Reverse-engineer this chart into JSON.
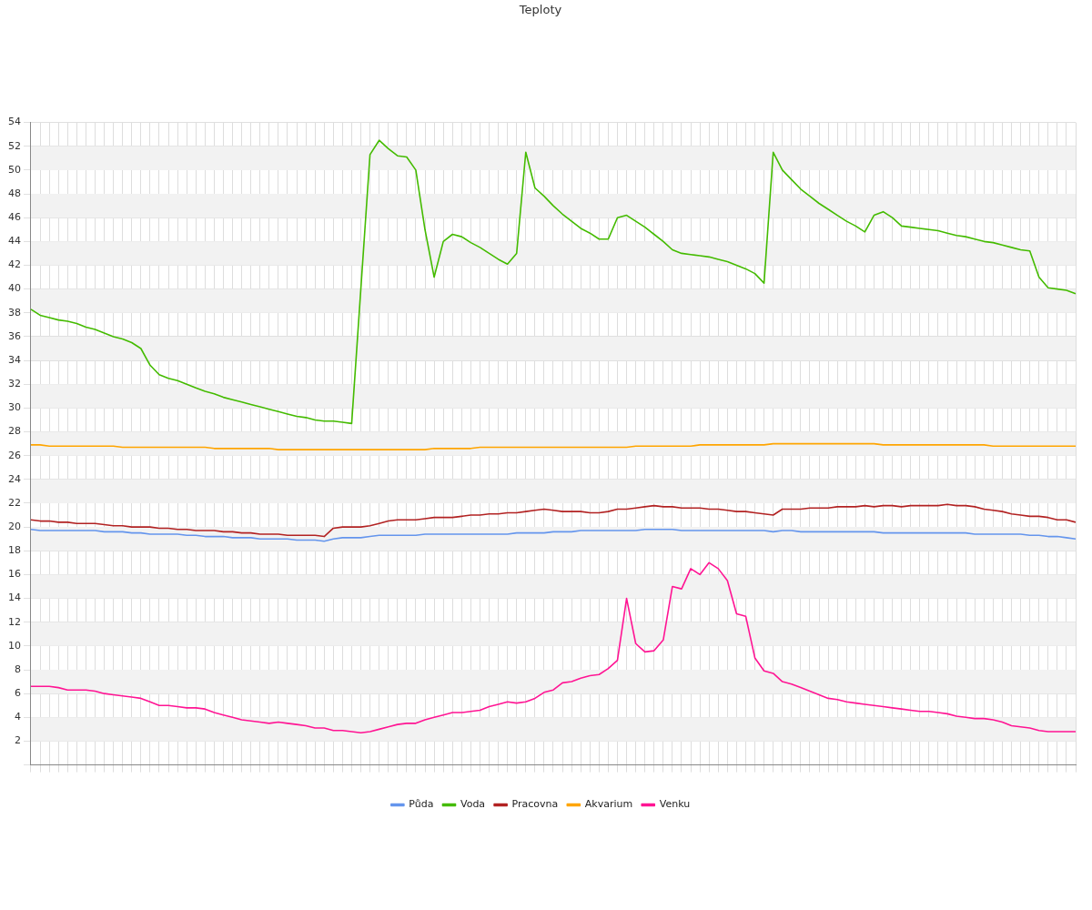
{
  "chart_data": {
    "type": "line",
    "title": "Teploty",
    "categories": [
      null,
      null,
      null,
      null,
      null,
      null,
      null,
      null,
      null,
      null,
      null,
      null,
      null,
      null,
      null,
      null,
      null,
      null,
      null,
      null,
      null,
      null,
      null,
      null,
      null,
      null,
      null,
      null,
      null,
      null,
      null,
      null,
      null,
      null,
      null,
      null,
      null,
      null,
      null,
      null,
      null,
      null,
      null,
      null,
      null,
      null,
      null,
      null,
      null,
      null,
      null,
      null,
      null,
      null,
      null,
      null,
      null,
      null,
      null,
      null,
      null,
      null,
      null,
      null,
      null,
      null,
      null,
      null,
      null,
      null,
      null,
      null,
      null,
      null,
      null,
      null,
      null,
      null,
      null,
      null,
      null,
      null,
      null,
      null,
      null,
      null,
      null,
      null,
      null,
      null,
      null,
      null,
      null,
      null,
      null,
      null,
      null,
      null,
      null,
      null,
      null,
      null,
      null,
      null,
      null,
      null,
      null,
      null,
      null,
      null,
      null,
      null,
      null,
      null,
      null
    ],
    "series": [
      {
        "name": "Půda",
        "color": "#6495ed",
        "values": [
          19.8,
          19.7,
          19.7,
          19.7,
          19.7,
          19.7,
          19.7,
          19.7,
          19.6,
          19.6,
          19.6,
          19.5,
          19.5,
          19.4,
          19.4,
          19.4,
          19.4,
          19.3,
          19.3,
          19.2,
          19.2,
          19.2,
          19.1,
          19.1,
          19.1,
          19.0,
          19.0,
          19.0,
          19.0,
          18.9,
          18.9,
          18.9,
          18.8,
          19.0,
          19.1,
          19.1,
          19.1,
          19.2,
          19.3,
          19.3,
          19.3,
          19.3,
          19.3,
          19.4,
          19.4,
          19.4,
          19.4,
          19.4,
          19.4,
          19.4,
          19.4,
          19.4,
          19.4,
          19.5,
          19.5,
          19.5,
          19.5,
          19.6,
          19.6,
          19.6,
          19.7,
          19.7,
          19.7,
          19.7,
          19.7,
          19.7,
          19.7,
          19.8,
          19.8,
          19.8,
          19.8,
          19.7,
          19.7,
          19.7,
          19.7,
          19.7,
          19.7,
          19.7,
          19.7,
          19.7,
          19.7,
          19.6,
          19.7,
          19.7,
          19.6,
          19.6,
          19.6,
          19.6,
          19.6,
          19.6,
          19.6,
          19.6,
          19.6,
          19.5,
          19.5,
          19.5,
          19.5,
          19.5,
          19.5,
          19.5,
          19.5,
          19.5,
          19.5,
          19.4,
          19.4,
          19.4,
          19.4,
          19.4,
          19.4,
          19.3,
          19.3,
          19.2,
          19.2,
          19.1,
          19.0
        ]
      },
      {
        "name": "Voda",
        "color": "#44bb00",
        "values": [
          38.3,
          37.8,
          37.6,
          37.4,
          37.3,
          37.1,
          36.8,
          36.6,
          36.3,
          36.0,
          35.8,
          35.5,
          35.0,
          33.6,
          32.8,
          32.5,
          32.3,
          32.0,
          31.7,
          31.4,
          31.2,
          30.9,
          30.7,
          30.5,
          30.3,
          30.1,
          29.9,
          29.7,
          29.5,
          29.3,
          29.2,
          29.0,
          28.9,
          28.9,
          28.8,
          28.7,
          40.0,
          51.3,
          52.5,
          51.8,
          51.2,
          51.1,
          50.0,
          45.0,
          41.0,
          44.0,
          44.6,
          44.4,
          43.9,
          43.5,
          43.0,
          42.5,
          42.1,
          43.0,
          51.5,
          48.5,
          47.8,
          47.0,
          46.3,
          45.7,
          45.1,
          44.7,
          44.2,
          44.2,
          46.0,
          46.2,
          45.7,
          45.2,
          44.6,
          44.0,
          43.3,
          43.0,
          42.9,
          42.8,
          42.7,
          42.5,
          42.3,
          42.0,
          41.7,
          41.3,
          40.5,
          51.5,
          50.0,
          49.2,
          48.4,
          47.8,
          47.2,
          46.7,
          46.2,
          45.7,
          45.3,
          44.8,
          46.2,
          46.5,
          46.0,
          45.3,
          45.2,
          45.1,
          45.0,
          44.9,
          44.7,
          44.5,
          44.4,
          44.2,
          44.0,
          43.9,
          43.7,
          43.5,
          43.3,
          43.2,
          41.0,
          40.1,
          40.0,
          39.9,
          39.6
        ]
      },
      {
        "name": "Pracovna",
        "color": "#b22222",
        "values": [
          20.6,
          20.5,
          20.5,
          20.4,
          20.4,
          20.3,
          20.3,
          20.3,
          20.2,
          20.1,
          20.1,
          20.0,
          20.0,
          20.0,
          19.9,
          19.9,
          19.8,
          19.8,
          19.7,
          19.7,
          19.7,
          19.6,
          19.6,
          19.5,
          19.5,
          19.4,
          19.4,
          19.4,
          19.3,
          19.3,
          19.3,
          19.3,
          19.2,
          19.9,
          20.0,
          20.0,
          20.0,
          20.1,
          20.3,
          20.5,
          20.6,
          20.6,
          20.6,
          20.7,
          20.8,
          20.8,
          20.8,
          20.9,
          21.0,
          21.0,
          21.1,
          21.1,
          21.2,
          21.2,
          21.3,
          21.4,
          21.5,
          21.4,
          21.3,
          21.3,
          21.3,
          21.2,
          21.2,
          21.3,
          21.5,
          21.5,
          21.6,
          21.7,
          21.8,
          21.7,
          21.7,
          21.6,
          21.6,
          21.6,
          21.5,
          21.5,
          21.4,
          21.3,
          21.3,
          21.2,
          21.1,
          21.0,
          21.5,
          21.5,
          21.5,
          21.6,
          21.6,
          21.6,
          21.7,
          21.7,
          21.7,
          21.8,
          21.7,
          21.8,
          21.8,
          21.7,
          21.8,
          21.8,
          21.8,
          21.8,
          21.9,
          21.8,
          21.8,
          21.7,
          21.5,
          21.4,
          21.3,
          21.1,
          21.0,
          20.9,
          20.9,
          20.8,
          20.6,
          20.6,
          20.4
        ]
      },
      {
        "name": "Akvarium",
        "color": "#ffa500",
        "values": [
          26.9,
          26.9,
          26.8,
          26.8,
          26.8,
          26.8,
          26.8,
          26.8,
          26.8,
          26.8,
          26.7,
          26.7,
          26.7,
          26.7,
          26.7,
          26.7,
          26.7,
          26.7,
          26.7,
          26.7,
          26.6,
          26.6,
          26.6,
          26.6,
          26.6,
          26.6,
          26.6,
          26.5,
          26.5,
          26.5,
          26.5,
          26.5,
          26.5,
          26.5,
          26.5,
          26.5,
          26.5,
          26.5,
          26.5,
          26.5,
          26.5,
          26.5,
          26.5,
          26.5,
          26.6,
          26.6,
          26.6,
          26.6,
          26.6,
          26.7,
          26.7,
          26.7,
          26.7,
          26.7,
          26.7,
          26.7,
          26.7,
          26.7,
          26.7,
          26.7,
          26.7,
          26.7,
          26.7,
          26.7,
          26.7,
          26.7,
          26.8,
          26.8,
          26.8,
          26.8,
          26.8,
          26.8,
          26.8,
          26.9,
          26.9,
          26.9,
          26.9,
          26.9,
          26.9,
          26.9,
          26.9,
          27.0,
          27.0,
          27.0,
          27.0,
          27.0,
          27.0,
          27.0,
          27.0,
          27.0,
          27.0,
          27.0,
          27.0,
          26.9,
          26.9,
          26.9,
          26.9,
          26.9,
          26.9,
          26.9,
          26.9,
          26.9,
          26.9,
          26.9,
          26.9,
          26.8,
          26.8,
          26.8,
          26.8,
          26.8,
          26.8,
          26.8,
          26.8,
          26.8,
          26.8
        ]
      },
      {
        "name": "Venku",
        "color": "#ff1493",
        "values": [
          6.6,
          6.6,
          6.6,
          6.5,
          6.3,
          6.3,
          6.3,
          6.2,
          6.0,
          5.9,
          5.8,
          5.7,
          5.6,
          5.3,
          5.0,
          5.0,
          4.9,
          4.8,
          4.8,
          4.7,
          4.4,
          4.2,
          4.0,
          3.8,
          3.7,
          3.6,
          3.5,
          3.6,
          3.5,
          3.4,
          3.3,
          3.1,
          3.1,
          2.9,
          2.9,
          2.8,
          2.7,
          2.8,
          3.0,
          3.2,
          3.4,
          3.5,
          3.5,
          3.8,
          4.0,
          4.2,
          4.4,
          4.4,
          4.5,
          4.6,
          4.9,
          5.1,
          5.3,
          5.2,
          5.3,
          5.6,
          6.1,
          6.3,
          6.9,
          7.0,
          7.3,
          7.5,
          7.6,
          8.1,
          8.8,
          14.0,
          10.2,
          9.5,
          9.6,
          10.5,
          15.0,
          14.8,
          16.5,
          16.0,
          17.0,
          16.5,
          15.5,
          12.7,
          12.5,
          9.0,
          7.9,
          7.7,
          7.0,
          6.8,
          6.5,
          6.2,
          5.9,
          5.6,
          5.5,
          5.3,
          5.2,
          5.1,
          5.0,
          4.9,
          4.8,
          4.7,
          4.6,
          4.5,
          4.5,
          4.4,
          4.3,
          4.1,
          4.0,
          3.9,
          3.9,
          3.8,
          3.6,
          3.3,
          3.2,
          3.1,
          2.9,
          2.8,
          2.8,
          2.8,
          2.8
        ]
      }
    ],
    "ylim": [
      0,
      54
    ],
    "yticks": [
      {
        "value": 0,
        "label": null
      },
      2,
      4,
      6,
      8,
      10,
      12,
      14,
      16,
      18,
      20,
      22,
      24,
      26,
      28,
      30,
      32,
      34,
      36,
      38,
      40,
      42,
      44,
      46,
      48,
      50,
      52,
      54
    ],
    "grid": true,
    "legend": "bottom",
    "marker": "none",
    "line_style": "solid"
  }
}
